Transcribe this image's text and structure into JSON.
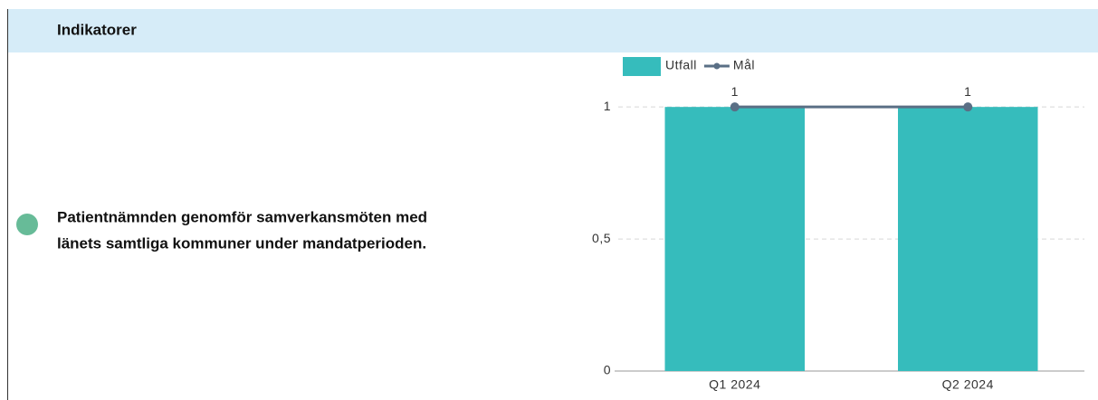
{
  "header": {
    "title": "Indikatorer"
  },
  "indicator": {
    "lines": [
      "Patientnämnden genomför samverkansmöten med",
      "länets samtliga kommuner under mandatperioden."
    ]
  },
  "chart_data": {
    "type": "bar",
    "categories": [
      "Q1 2024",
      "Q2 2024"
    ],
    "series": [
      {
        "name": "Utfall",
        "type": "bar",
        "color": "#36bcbc",
        "values": [
          1,
          1
        ]
      },
      {
        "name": "Mål",
        "type": "line",
        "color": "#5a6f85",
        "values": [
          1,
          1
        ]
      }
    ],
    "ylim": [
      0,
      1.1
    ],
    "yticks": [
      0,
      {
        "value": 0.5,
        "label": "0,5"
      },
      1
    ],
    "grid": true,
    "legend": "top"
  }
}
